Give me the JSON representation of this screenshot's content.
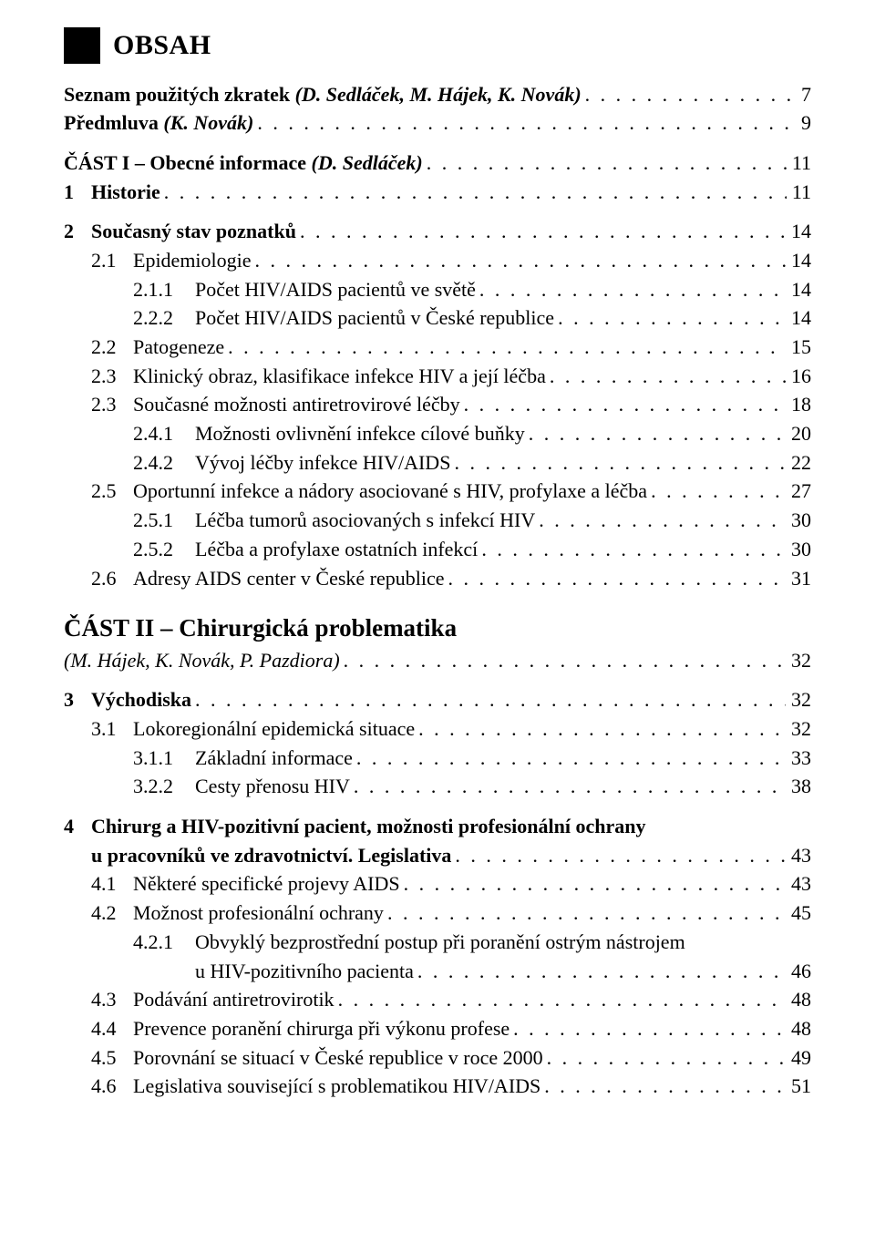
{
  "header": {
    "title": "OBSAH"
  },
  "part2_title": "ČÁST II – Chirurgická problematika",
  "entries": [
    {
      "type": "row",
      "indent": 0,
      "num": "",
      "numw": "w0",
      "label": "Seznam použitých zkratek ",
      "italic_after": "(D. Sedláček, M. Hájek, K. Novák)",
      "page": "7",
      "bold": true,
      "spacer": true
    },
    {
      "type": "row",
      "indent": 0,
      "num": "",
      "numw": "w0",
      "label": "Předmluva ",
      "italic_after": "(K. Novák)",
      "page": "9",
      "bold": true
    },
    {
      "type": "row",
      "indent": 0,
      "num": "",
      "numw": "w0",
      "label": "ČÁST I – Obecné informace ",
      "italic_after": "(D. Sedláček)",
      "page": "11",
      "bold": true,
      "spacer": true
    },
    {
      "type": "row",
      "indent": 0,
      "num": "1",
      "numw": "w1",
      "label": "Historie",
      "page": "11",
      "bold": true
    },
    {
      "type": "row",
      "indent": 0,
      "num": "2",
      "numw": "w1",
      "label": "Současný stav poznatků",
      "page": "14",
      "bold": true,
      "spacer": true
    },
    {
      "type": "row",
      "indent": 1,
      "num": "2.1",
      "numw": "w2",
      "label": "Epidemiologie",
      "page": "14"
    },
    {
      "type": "row",
      "indent": 2,
      "num": "2.1.1",
      "numw": "w3",
      "label": "Počet HIV/AIDS pacientů ve světě",
      "page": "14"
    },
    {
      "type": "row",
      "indent": 2,
      "num": "2.2.2",
      "numw": "w3",
      "label": "Počet HIV/AIDS pacientů v České republice",
      "page": "14"
    },
    {
      "type": "row",
      "indent": 1,
      "num": "2.2",
      "numw": "w2",
      "label": "Patogeneze",
      "page": "15"
    },
    {
      "type": "row",
      "indent": 1,
      "num": "2.3",
      "numw": "w2",
      "label": "Klinický obraz, klasifikace infekce HIV a její léčba",
      "page": "16"
    },
    {
      "type": "row",
      "indent": 1,
      "num": "2.3",
      "numw": "w2",
      "label": "Současné možnosti antiretrovirové léčby",
      "page": "18"
    },
    {
      "type": "row",
      "indent": 2,
      "num": "2.4.1",
      "numw": "w3",
      "label": "Možnosti ovlivnění infekce cílové buňky",
      "page": "20"
    },
    {
      "type": "row",
      "indent": 2,
      "num": "2.4.2",
      "numw": "w3",
      "label": "Vývoj léčby infekce HIV/AIDS",
      "page": "22"
    },
    {
      "type": "row",
      "indent": 1,
      "num": "2.5",
      "numw": "w2",
      "label": "Oportunní infekce a nádory asociované s HIV, profylaxe a léčba",
      "page": "27"
    },
    {
      "type": "row",
      "indent": 2,
      "num": "2.5.1",
      "numw": "w3",
      "label": "Léčba tumorů asociovaných s infekcí HIV",
      "page": "30"
    },
    {
      "type": "row",
      "indent": 2,
      "num": "2.5.2",
      "numw": "w3",
      "label": "Léčba a profylaxe ostatních infekcí",
      "page": "30"
    },
    {
      "type": "row",
      "indent": 1,
      "num": "2.6",
      "numw": "w2",
      "label": "Adresy AIDS center v České republice",
      "page": "31"
    },
    {
      "type": "part2"
    },
    {
      "type": "row",
      "indent": 0,
      "num": "",
      "numw": "w0",
      "label_italic": "(M. Hájek, K. Novák, P. Pazdiora)",
      "page": "32"
    },
    {
      "type": "row",
      "indent": 0,
      "num": "3",
      "numw": "w1",
      "label": "Východiska",
      "page": "32",
      "bold": true,
      "spacer": true
    },
    {
      "type": "row",
      "indent": 1,
      "num": "3.1",
      "numw": "w2",
      "label": "Lokoregionální epidemická situace",
      "page": "32"
    },
    {
      "type": "row",
      "indent": 2,
      "num": "3.1.1",
      "numw": "w3",
      "label": "Základní informace",
      "page": "33"
    },
    {
      "type": "row",
      "indent": 2,
      "num": "3.2.2",
      "numw": "w3",
      "label": "Cesty přenosu HIV",
      "page": "38"
    },
    {
      "type": "two",
      "num": "4",
      "line1": "Chirurg a HIV-pozitivní pacient, možnosti profesionální ochrany",
      "line2": "u pracovníků ve zdravotnictví. Legislativa",
      "page": "43",
      "bold": true,
      "spacer": true
    },
    {
      "type": "row",
      "indent": 1,
      "num": "4.1",
      "numw": "w2",
      "label": "Některé specifické projevy AIDS",
      "page": "43"
    },
    {
      "type": "row",
      "indent": 1,
      "num": "4.2",
      "numw": "w2",
      "label": "Možnost profesionální ochrany",
      "page": "45"
    },
    {
      "type": "two3",
      "num": "4.2.1",
      "line1": "Obvyklý bezprostřední postup při poranění ostrým nástrojem",
      "line2": "u HIV-pozitivního pacienta",
      "page": "46"
    },
    {
      "type": "row",
      "indent": 1,
      "num": "4.3",
      "numw": "w2",
      "label": "Podávání antiretrovirotik",
      "page": "48"
    },
    {
      "type": "row",
      "indent": 1,
      "num": "4.4",
      "numw": "w2",
      "label": "Prevence poranění chirurga při výkonu profese",
      "page": "48"
    },
    {
      "type": "row",
      "indent": 1,
      "num": "4.5",
      "numw": "w2",
      "label": "Porovnání se situací v České republice v roce 2000",
      "page": "49"
    },
    {
      "type": "row",
      "indent": 1,
      "num": "4.6",
      "numw": "w2",
      "label": "Legislativa související s problematikou HIV/AIDS",
      "page": "51"
    }
  ]
}
